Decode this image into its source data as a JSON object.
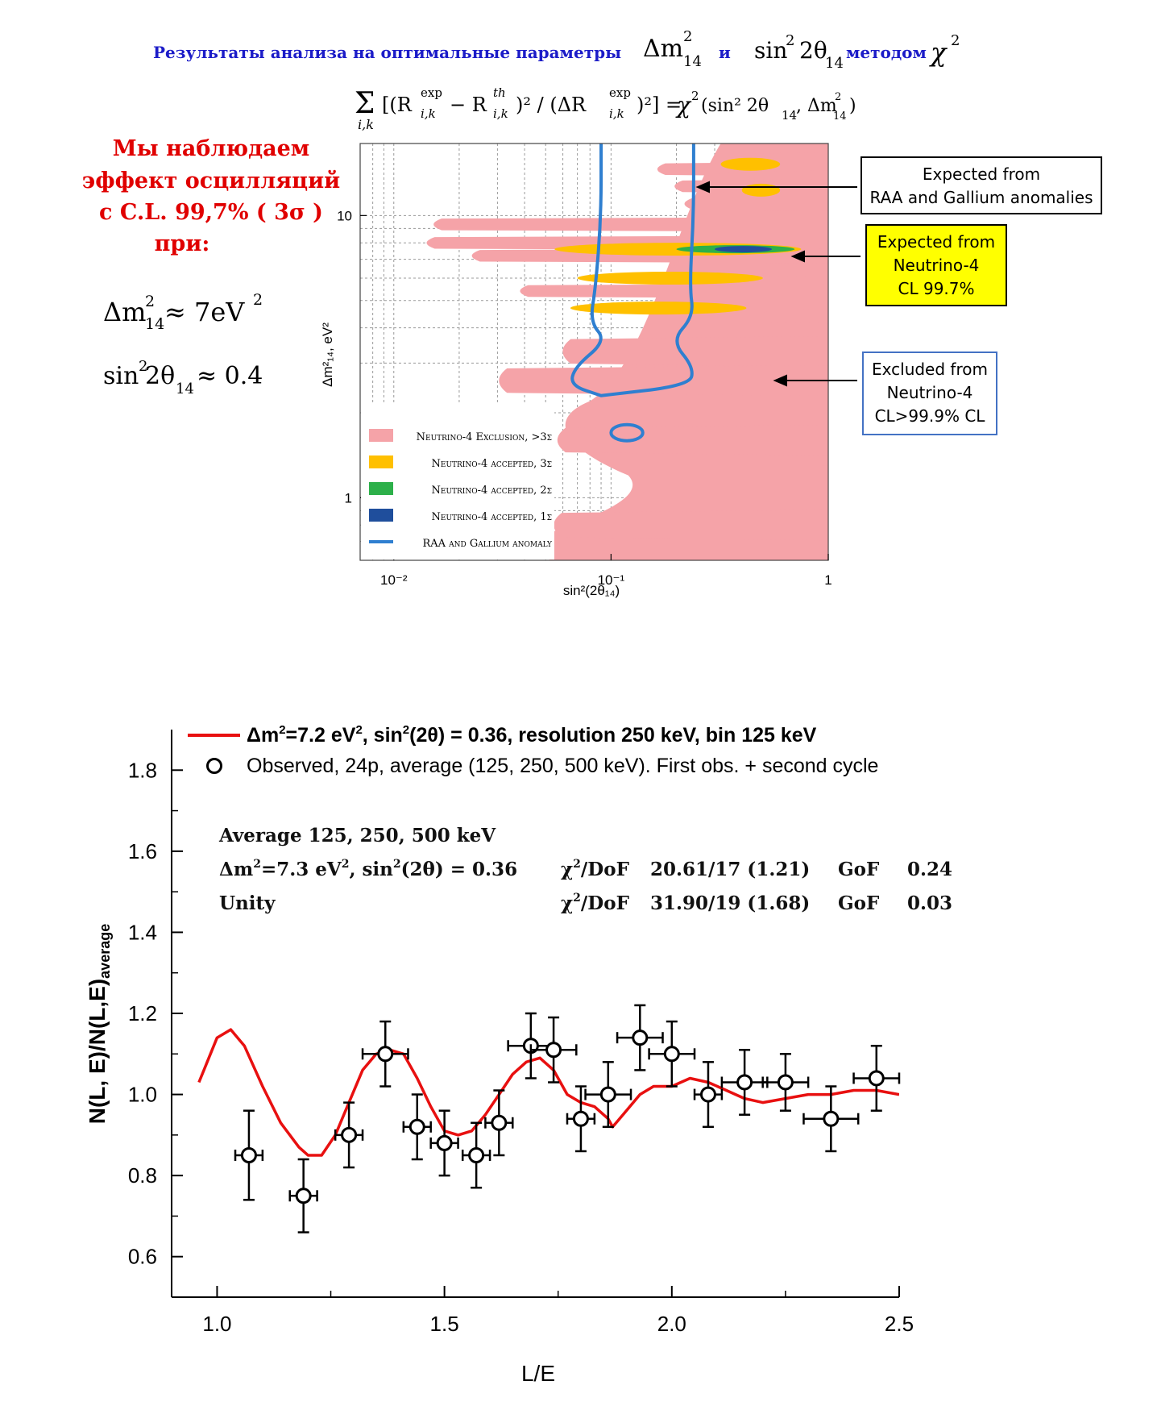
{
  "header": {
    "title_lead": "Результаты анализа на оптимальные параметры",
    "title_param1": "Δm",
    "title_param1_sup": "2",
    "title_param1_sub": "14",
    "title_and": "и",
    "title_param2": "sin",
    "title_param2_sup": "2",
    "title_param2_mid": "2θ",
    "title_param2_sub": "14",
    "title_method": "методом",
    "title_chi": "χ",
    "title_chi_sup": "2",
    "formula": {
      "sum": "Σ",
      "sum_sub": "i,k",
      "lhs": "[(R",
      "r_exp_sup": "exp",
      "r_sub": "i,k",
      "minus": " − R",
      "r_th_sup": "th",
      "mid": ")² / (ΔR",
      "end": ")²] =",
      "rhs_chi": "χ",
      "rhs_chi_sup": "2",
      "rhs_args": "(sin² 2θ",
      "rhs_args_sub": "14",
      "rhs_args2": ", Δm",
      "rhs_args2_sup": "2",
      "rhs_args2_sub": "14",
      "rhs_close": ")"
    }
  },
  "left_panel": {
    "statement": [
      "Мы наблюдаем",
      "эффект осцилляций",
      "с  C.L. 99,7% ( 3σ   )",
      "при:"
    ],
    "result_dm_lhs": "Δm",
    "result_dm_sup": "2",
    "result_dm_sub": "14",
    "result_dm_rhs": " ≈ 7eV",
    "result_dm_rhs_sup": "2",
    "result_sin_lhs": "sin",
    "result_sin_sup": "2",
    "result_sin_mid": " 2θ",
    "result_sin_sub": "14",
    "result_sin_rhs": " ≈ 0.4",
    "statement_color": "#e00000"
  },
  "callouts": {
    "raa": [
      "Expected from",
      "RAA and Gallium anomalies"
    ],
    "neutrino4_expected": [
      "Expected from",
      "Neutrino-4",
      "CL 99.7%"
    ],
    "neutrino4_excluded": [
      "Excluded from",
      "Neutrino-4",
      "CL>99.9% CL"
    ],
    "neutrino4_expected_bg": "#ffff00",
    "neutrino4_excluded_border": "#4472c4"
  },
  "chart_data": [
    {
      "type": "area",
      "ylabel": "Δm²₁₄, eV²",
      "xlabel": "sin²(2θ₁₄)",
      "x_scale": "log",
      "y_scale": "log",
      "xlim": [
        0.007,
        1
      ],
      "ylim": [
        0.6,
        18
      ],
      "x_tick_labels": [
        "10⁻²",
        "10⁻¹",
        "1"
      ],
      "x_tick_values": [
        0.01,
        0.1,
        1
      ],
      "y_tick_labels": [
        "1",
        "10"
      ],
      "y_tick_values": [
        1,
        10
      ],
      "grid": true,
      "legend_placement": "bottom-left",
      "legend": [
        {
          "label": "Neutrino-4 Exclusion, >3σ",
          "color": "#f5a3a8"
        },
        {
          "label": "Neutrino-4 accepted, 3σ",
          "color": "#ffc000"
        },
        {
          "label": "Neutrino-4 accepted, 2σ",
          "color": "#2db04a"
        },
        {
          "label": "Neutrino-4 accepted, 1σ",
          "color": "#1f4e9c"
        },
        {
          "label": "RAA and Gallium anomaly",
          "color": "#2f7fd0"
        }
      ],
      "series": [
        {
          "name": "Neutrino-4 Exclusion, >3σ",
          "fingers": [
            {
              "dm2": 15.8,
              "sin_min": 0.38
            },
            {
              "dm2": 14.6,
              "sin_min": 0.15
            },
            {
              "dm2": 13.6,
              "sin_min": 0.28
            },
            {
              "dm2": 12.7,
              "sin_min": 0.18
            },
            {
              "dm2": 11.8,
              "sin_min": 0.33
            },
            {
              "dm2": 11.0,
              "sin_min": 0.2
            },
            {
              "dm2": 9.3,
              "sin_min": 0.014
            },
            {
              "dm2": 8.0,
              "sin_min": 0.013
            },
            {
              "dm2": 7.2,
              "sin_min": 0.021
            },
            {
              "dm2": 6.4,
              "sin_min": 0.17
            },
            {
              "dm2": 5.4,
              "sin_min": 0.035
            },
            {
              "dm2": 4.4,
              "sin_min": 0.45
            },
            {
              "dm2": 3.3,
              "sin_min": 0.055
            },
            {
              "dm2": 2.6,
              "sin_min": 0.028
            },
            {
              "dm2": 1.6,
              "sin_min": 0.052
            },
            {
              "dm2": 1.15,
              "sin_min": 0.12
            },
            {
              "dm2": 0.8,
              "sin_min": 0.05
            }
          ],
          "solid_from_sin": 0.6
        },
        {
          "name": "Neutrino-4 accepted, 3σ",
          "islands": [
            {
              "dm2": 15.2,
              "sin_min": 0.32,
              "sin_max": 0.6
            },
            {
              "dm2": 12.3,
              "sin_min": 0.4,
              "sin_max": 0.6
            },
            {
              "dm2": 7.6,
              "sin_min": 0.055,
              "sin_max": 0.75
            },
            {
              "dm2": 6.0,
              "sin_min": 0.07,
              "sin_max": 0.5
            },
            {
              "dm2": 4.7,
              "sin_min": 0.065,
              "sin_max": 0.42
            }
          ]
        },
        {
          "name": "Neutrino-4 accepted, 2σ",
          "islands": [
            {
              "dm2": 7.6,
              "sin_min": 0.2,
              "sin_max": 0.7
            }
          ]
        },
        {
          "name": "Neutrino-4 accepted, 1σ",
          "islands": [
            {
              "dm2": 7.6,
              "sin_min": 0.3,
              "sin_max": 0.55
            }
          ]
        },
        {
          "name": "RAA and Gallium anomaly",
          "contour_left": [
            {
              "dm2": 18,
              "sin": 0.09
            },
            {
              "dm2": 10,
              "sin": 0.09
            },
            {
              "dm2": 5.6,
              "sin": 0.085
            },
            {
              "dm2": 4.2,
              "sin": 0.08
            },
            {
              "dm2": 3.6,
              "sin": 0.095
            },
            {
              "dm2": 2.9,
              "sin": 0.068
            },
            {
              "dm2": 2.5,
              "sin": 0.065
            },
            {
              "dm2": 2.3,
              "sin": 0.09
            }
          ],
          "contour_right": [
            {
              "dm2": 18,
              "sin": 0.24
            },
            {
              "dm2": 10,
              "sin": 0.24
            },
            {
              "dm2": 5.6,
              "sin": 0.23
            },
            {
              "dm2": 4.4,
              "sin": 0.24
            },
            {
              "dm2": 3.6,
              "sin": 0.19
            },
            {
              "dm2": 2.9,
              "sin": 0.24
            },
            {
              "dm2": 2.5,
              "sin": 0.23
            },
            {
              "dm2": 2.3,
              "sin": 0.09
            }
          ],
          "island": {
            "dm2_center": 1.7,
            "sin_min": 0.1,
            "sin_max": 0.14
          }
        }
      ]
    },
    {
      "type": "line",
      "xlabel": "L/E",
      "ylabel": "N(L, E)/N(L,E)",
      "ylabel_sub": "average",
      "xlim": [
        0.9,
        2.5
      ],
      "ylim": [
        0.5,
        1.9
      ],
      "x_ticks": [
        1.0,
        1.5,
        2.0,
        2.5
      ],
      "x_tick_labels": [
        "1.0",
        "1.5",
        "2.0",
        "2.5"
      ],
      "y_ticks": [
        0.6,
        0.8,
        1.0,
        1.2,
        1.4,
        1.6,
        1.8
      ],
      "y_tick_labels": [
        "0.6",
        "0.8",
        "1.0",
        "1.2",
        "1.4",
        "1.6",
        "1.8"
      ],
      "legend_placement": "top",
      "legend": {
        "fit_prefix": "Δm",
        "fit_sup": "2",
        "fit_mid": "=7.2 eV",
        "fit_sup2": "2",
        "fit_mid2": ", sin",
        "fit_sup3": "2",
        "fit_rest": "(2θ) = 0.36, resolution 250 keV, bin 125 keV",
        "observed": "Observed, 24p, average (125, 250, 500 keV). First obs. + second cycle"
      },
      "annotation": {
        "heading": "Average 125, 250, 500 keV",
        "row1_model_pre": "Δm",
        "row1_model_sup": "2",
        "row1_model_mid": "=7.3 eV",
        "row1_model_sup2": "2",
        "row1_model_mid2": ", sin",
        "row1_model_sup3": "2",
        "row1_model_rest": "(2θ) = 0.36",
        "row2_model": "Unity",
        "chi_label": "χ",
        "chi_sup": "2",
        "chi_rest": "/DoF",
        "row1_chi": "20.61/17 (1.21)",
        "row2_chi": "31.90/19 (1.68)",
        "gof_label": "GoF",
        "row1_gof": "0.24",
        "row2_gof": "0.03"
      },
      "series": [
        {
          "name": "Δm²=7.2 eV², sin²(2θ) = 0.36, resolution 250 keV, bin 125 keV",
          "color": "#e81010",
          "x": [
            0.96,
            1.0,
            1.03,
            1.06,
            1.1,
            1.14,
            1.18,
            1.2,
            1.23,
            1.26,
            1.29,
            1.32,
            1.35,
            1.38,
            1.41,
            1.44,
            1.47,
            1.5,
            1.53,
            1.56,
            1.59,
            1.62,
            1.65,
            1.68,
            1.71,
            1.74,
            1.77,
            1.8,
            1.83,
            1.86,
            1.87,
            1.9,
            1.93,
            1.96,
            2.0,
            2.04,
            2.08,
            2.12,
            2.16,
            2.2,
            2.25,
            2.3,
            2.35,
            2.4,
            2.45,
            2.5
          ],
          "y": [
            1.03,
            1.14,
            1.16,
            1.12,
            1.02,
            0.93,
            0.87,
            0.85,
            0.85,
            0.9,
            0.98,
            1.06,
            1.1,
            1.11,
            1.1,
            1.04,
            0.97,
            0.91,
            0.9,
            0.91,
            0.95,
            1.0,
            1.05,
            1.08,
            1.09,
            1.06,
            1.0,
            0.98,
            0.97,
            0.94,
            0.92,
            0.96,
            1.0,
            1.02,
            1.02,
            1.04,
            1.03,
            1.01,
            0.99,
            0.98,
            0.99,
            1.0,
            1.0,
            1.01,
            1.01,
            1.0
          ]
        },
        {
          "name": "Observed, 24p, average (125, 250, 500 keV). First obs. + second cycle",
          "marker": "open-circle",
          "x": [
            1.07,
            1.19,
            1.29,
            1.37,
            1.44,
            1.5,
            1.57,
            1.62,
            1.69,
            1.74,
            1.8,
            1.86,
            1.93,
            2.0,
            2.08,
            2.16,
            2.25,
            2.35,
            2.45
          ],
          "y": [
            0.85,
            0.75,
            0.9,
            1.1,
            0.92,
            0.88,
            0.85,
            0.93,
            1.12,
            1.11,
            0.94,
            1.0,
            1.14,
            1.1,
            1.0,
            1.03,
            1.03,
            0.94,
            1.04
          ],
          "y_err": [
            0.11,
            0.09,
            0.08,
            0.08,
            0.08,
            0.08,
            0.08,
            0.08,
            0.08,
            0.08,
            0.08,
            0.08,
            0.08,
            0.08,
            0.08,
            0.08,
            0.07,
            0.08,
            0.08
          ],
          "x_err": [
            0.03,
            0.03,
            0.03,
            0.05,
            0.03,
            0.03,
            0.03,
            0.03,
            0.05,
            0.05,
            0.03,
            0.05,
            0.05,
            0.05,
            0.03,
            0.05,
            0.05,
            0.06,
            0.05
          ]
        }
      ]
    }
  ]
}
